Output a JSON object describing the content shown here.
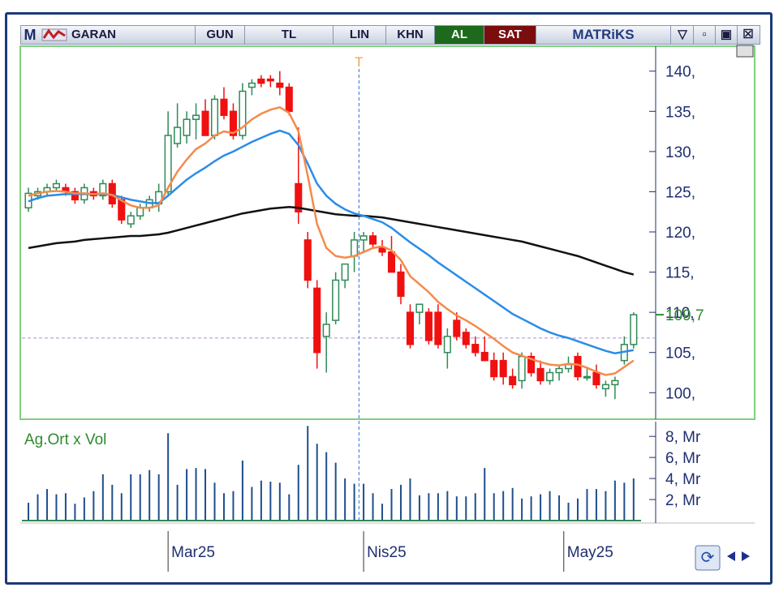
{
  "toolbar": {
    "logo": "M",
    "symbol": "GARAN",
    "buttons": [
      "GUN",
      "TL",
      "LIN",
      "KHN"
    ],
    "buy": "AL",
    "sell": "SAT",
    "brand": "MATRiKS"
  },
  "chart_data": [
    {
      "type": "candlestick",
      "open": [
        123,
        124.5,
        125,
        125.5,
        125.5,
        125,
        124,
        125,
        124.5,
        126,
        124,
        121,
        122,
        123,
        123.5,
        125,
        131,
        132,
        134,
        135,
        132,
        136.5,
        135,
        132,
        138,
        139,
        139,
        138.5,
        138,
        126,
        119,
        113,
        107,
        109,
        114,
        117,
        119,
        119.5,
        118,
        117.5,
        115,
        110,
        110,
        110,
        110,
        105,
        109,
        107.5,
        106,
        105,
        104,
        104,
        102,
        101.5,
        104.5,
        103,
        101.5,
        102.5,
        103,
        104.5,
        102,
        102.5,
        100.5,
        101,
        104,
        106
      ],
      "high": [
        125.5,
        125.5,
        126,
        126.5,
        126,
        125.5,
        126,
        125.5,
        126.5,
        126.5,
        124.5,
        122.5,
        123.5,
        124.5,
        126,
        135,
        136,
        135,
        136,
        136.5,
        137,
        138,
        136,
        138.5,
        139,
        139.5,
        139.5,
        140,
        138.5,
        133,
        120,
        114,
        110,
        115,
        116,
        120,
        120,
        120,
        119,
        119.5,
        116,
        111,
        111,
        110.5,
        111,
        108,
        110,
        108,
        107,
        107,
        105,
        105,
        103,
        105,
        105,
        104,
        103,
        103.5,
        104.5,
        105,
        103,
        103.5,
        101.5,
        102,
        107,
        110
      ],
      "low": [
        122.5,
        124,
        124.5,
        125,
        124.5,
        123.5,
        123.5,
        124,
        124,
        123,
        121,
        120.5,
        121.5,
        122.5,
        122.5,
        124.5,
        130.5,
        131,
        131.5,
        132,
        131.5,
        134,
        131.5,
        131.5,
        137,
        138,
        138,
        137,
        134.5,
        121,
        113,
        103,
        102.5,
        108.5,
        113,
        115,
        117.5,
        118,
        117,
        115,
        111,
        105.5,
        108.5,
        106,
        105.5,
        103,
        106.5,
        105.5,
        104.5,
        104,
        101.5,
        101,
        100.5,
        100.5,
        102,
        101,
        101,
        101.5,
        102.5,
        101.5,
        101.5,
        100.5,
        99.5,
        99.2,
        103.5,
        105.5
      ],
      "close": [
        124.8,
        125,
        125.5,
        126,
        125,
        124,
        125.5,
        124.5,
        126,
        123.5,
        121.5,
        122,
        123,
        124,
        125,
        132,
        133,
        134,
        134.5,
        132,
        136.5,
        134.5,
        132,
        137.5,
        138.5,
        138.5,
        138.8,
        138,
        135,
        122.5,
        114,
        105,
        108.5,
        114,
        116,
        119,
        119.5,
        118.5,
        117.5,
        115,
        112,
        106,
        111,
        106.5,
        106,
        107,
        107,
        106,
        105,
        104,
        102,
        102,
        101,
        104.5,
        102.5,
        101.5,
        102.5,
        103,
        103.5,
        102,
        102,
        101,
        101,
        101.5,
        106,
        109.7
      ],
      "up_color": "#2e8b57",
      "down_color": "#f01010",
      "series": [
        {
          "color": "#111111",
          "values": [
            118,
            118.2,
            118.4,
            118.6,
            118.7,
            118.8,
            119,
            119.1,
            119.2,
            119.3,
            119.4,
            119.5,
            119.5,
            119.6,
            119.7,
            119.9,
            120.2,
            120.5,
            120.8,
            121.1,
            121.4,
            121.7,
            122,
            122.3,
            122.5,
            122.7,
            122.9,
            123,
            123.1,
            123,
            122.8,
            122.6,
            122.4,
            122.2,
            122.1,
            122,
            122,
            121.9,
            121.8,
            121.6,
            121.4,
            121.2,
            121,
            120.8,
            120.6,
            120.4,
            120.2,
            120,
            119.8,
            119.6,
            119.4,
            119.2,
            119,
            118.8,
            118.5,
            118.2,
            117.9,
            117.6,
            117.3,
            117,
            116.6,
            116.2,
            115.8,
            115.4,
            115,
            114.7
          ]
        },
        {
          "color": "#2b8ce8",
          "values": [
            123.8,
            124.2,
            124.5,
            124.6,
            124.7,
            124.7,
            124.7,
            124.7,
            124.7,
            124.6,
            124.3,
            124,
            123.8,
            123.6,
            123.6,
            124.5,
            125.5,
            126.5,
            127.3,
            128,
            128.8,
            129.5,
            130,
            130.6,
            131.2,
            131.7,
            132.2,
            132.6,
            132.2,
            130.8,
            128.5,
            126,
            124.5,
            123.5,
            122.8,
            122.3,
            122,
            121.6,
            121.2,
            120.5,
            119.6,
            118.7,
            117.9,
            117.1,
            116.2,
            115.4,
            114.6,
            113.8,
            113,
            112.2,
            111.4,
            110.6,
            109.8,
            109.2,
            108.6,
            108,
            107.5,
            107.1,
            106.8,
            106.4,
            106,
            105.6,
            105.2,
            104.9,
            105.1,
            105.3
          ]
        },
        {
          "color": "#f58a4b",
          "values": [
            124.5,
            124.8,
            125,
            125.1,
            125,
            124.8,
            124.8,
            124.7,
            124.8,
            124.6,
            123.9,
            123.3,
            123,
            123,
            123.3,
            125.5,
            127.5,
            129,
            130.3,
            131,
            132,
            132.5,
            132.3,
            133,
            134,
            134.7,
            135.2,
            135.5,
            134.8,
            132.5,
            127,
            121,
            118,
            117,
            116.8,
            117,
            117.5,
            118,
            118.2,
            117.7,
            116.5,
            114.5,
            113.5,
            112.5,
            111.3,
            110.4,
            109.6,
            109,
            108.3,
            107.5,
            106.7,
            105.8,
            105,
            104.6,
            104.2,
            103.8,
            103.5,
            103.4,
            103.6,
            103.5,
            103.1,
            102.6,
            102.2,
            102.4,
            103.2,
            104
          ]
        }
      ],
      "ylim": [
        96.7,
        143.1
      ],
      "yticks": [
        {
          "value": 100,
          "label": "100,"
        },
        {
          "value": 105,
          "label": "105,"
        },
        {
          "value": 110,
          "label": "110,"
        },
        {
          "value": 115,
          "label": "115,"
        },
        {
          "value": 120,
          "label": "120,"
        },
        {
          "value": 125,
          "label": "125,"
        },
        {
          "value": 130,
          "label": "130,"
        },
        {
          "value": 135,
          "label": "135,"
        },
        {
          "value": 140,
          "label": "140,"
        }
      ],
      "xlim": [
        -0.7,
        65.8
      ],
      "xticks": [
        {
          "value": 15,
          "label": "Mar25"
        },
        {
          "value": 36,
          "label": "Nis25"
        },
        {
          "value": 57.5,
          "label": "May25"
        }
      ],
      "last_value": {
        "value": 109.7,
        "label": "109,7"
      },
      "cursor": {
        "label": "T",
        "index": 35.5,
        "price": 106.8
      }
    },
    {
      "type": "bar",
      "title": "Ag.Ort x Vol",
      "color": "#1f4e8c",
      "values": [
        1.7,
        2.5,
        3,
        2.5,
        2.6,
        1.6,
        2.2,
        2.8,
        4.4,
        3.4,
        2.6,
        4.4,
        4.4,
        4.8,
        4.4,
        8.3,
        3.4,
        4.9,
        5,
        4.9,
        3.6,
        2.6,
        2.8,
        5.7,
        3.2,
        3.8,
        3.7,
        3.6,
        2.5,
        5.3,
        9,
        7.3,
        6.5,
        5.5,
        4,
        3.5,
        3.5,
        2.6,
        1.6,
        3,
        3.4,
        4,
        2.4,
        2.6,
        2.6,
        2.8,
        2.3,
        2.3,
        2.6,
        5,
        2.6,
        2.8,
        3.1,
        2.1,
        2.3,
        2.5,
        2.8,
        2.4,
        1.7,
        2.1,
        3,
        3,
        2.8,
        3.8,
        3.6,
        4
      ],
      "ylim": [
        0,
        9.4
      ],
      "yticks": [
        {
          "value": 2,
          "label": "2, Mr"
        },
        {
          "value": 4,
          "label": "4, Mr"
        },
        {
          "value": 6,
          "label": "6, Mr"
        },
        {
          "value": 8,
          "label": "8, Mr"
        }
      ]
    }
  ]
}
